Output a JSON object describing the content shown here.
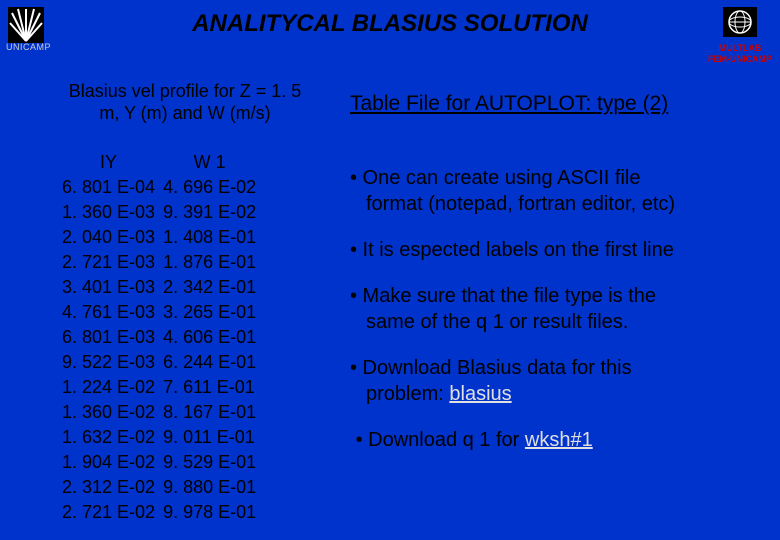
{
  "title": "ANALITYCAL BLASIUS SOLUTION",
  "org_left": "UNICAMP",
  "org_right_line1": "MULTLAB",
  "org_right_line2": "FEM-UNICAMP",
  "left_logo": {
    "bg": "#000000",
    "ray_color": "#ffffff"
  },
  "right_logo": {
    "bg": "#000000",
    "ring_color": "#ffffff"
  },
  "subtitle_line1": "Blasius vel profile for Z = 1. 5",
  "subtitle_line2": "m, Y (m) and W (m/s)",
  "table": {
    "headers": [
      "IY",
      "W 1"
    ],
    "rows": [
      [
        "6. 801 E-04",
        "4. 696 E-02"
      ],
      [
        "1. 360 E-03",
        "9. 391 E-02"
      ],
      [
        "2. 040 E-03",
        "1. 408 E-01"
      ],
      [
        "2. 721 E-03",
        "1. 876 E-01"
      ],
      [
        "3. 401 E-03",
        "2. 342 E-01"
      ],
      [
        "4. 761 E-03",
        "3. 265 E-01"
      ],
      [
        "6. 801 E-03",
        "4. 606 E-01"
      ],
      [
        "9. 522 E-03",
        "6. 244 E-01"
      ],
      [
        "1. 224 E-02",
        "7. 611 E-01"
      ],
      [
        "1. 360 E-02",
        "8. 167 E-01"
      ],
      [
        "1. 632 E-02",
        "9. 011 E-01"
      ],
      [
        "1. 904 E-02",
        "9. 529 E-01"
      ],
      [
        "2. 312 E-02",
        "9. 880 E-01"
      ],
      [
        "2. 721 E-02",
        "9. 978 E-01"
      ]
    ]
  },
  "right_title": "Table File for AUTOPLOT: type (2)",
  "bullets": {
    "b1a": "• One can create using ASCII file",
    "b1b": "format (notepad, fortran editor, etc)",
    "b2": "• It is espected labels on the first line",
    "b3a": "• Make sure that the file type is the",
    "b3b": "same of the q 1 or result files.",
    "b4a": "• Download Blasius data for this",
    "b4b_pre": "problem: ",
    "b4b_link": "blasius",
    "b5_pre": "• Download q 1 for ",
    "b5_link": "wksh#1"
  },
  "colors": {
    "background": "#0033cc",
    "text": "#000000",
    "link": "#e0e0e0",
    "org_left": "#cccccc",
    "org_right": "#cc0000"
  }
}
